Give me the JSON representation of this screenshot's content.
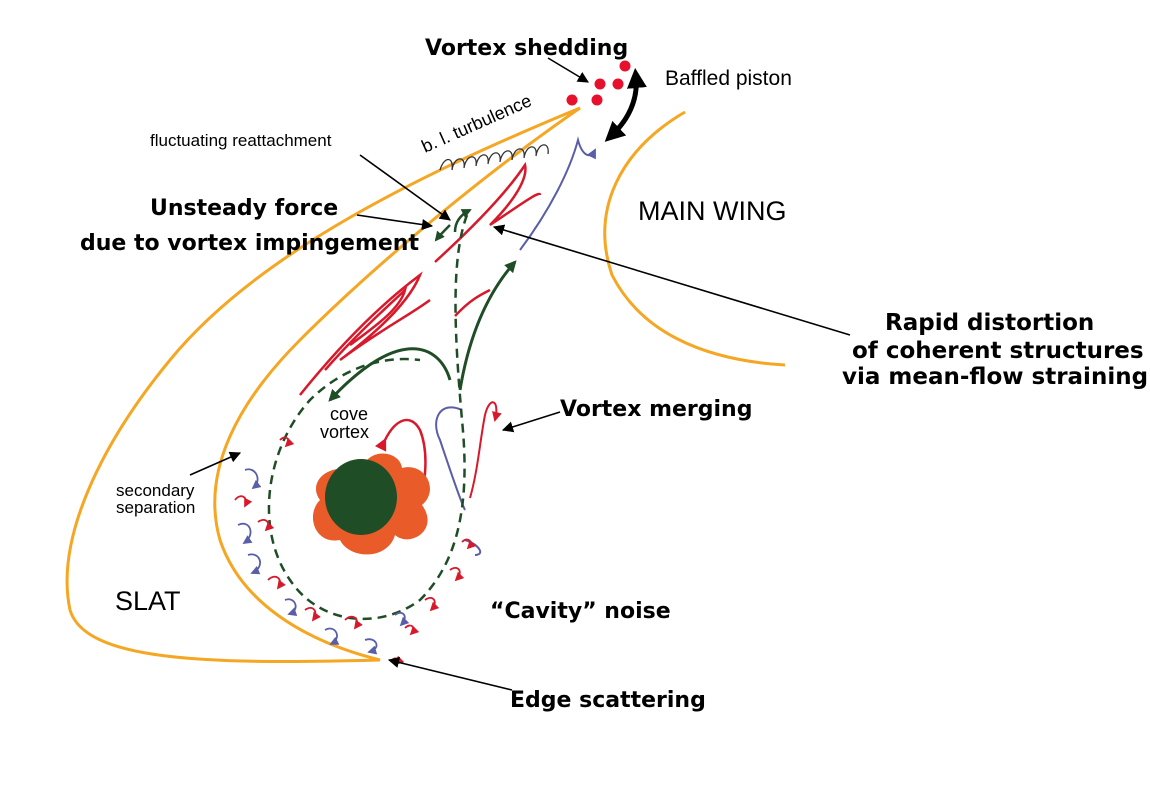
{
  "labels": {
    "vortex_shedding": "Vortex shedding",
    "baffled_piston": "Baffled piston",
    "bl_turbulence": "b. l. turbulence",
    "fluctuating_reattachment": "fluctuating reattachment",
    "unsteady_force_line1": "Unsteady force",
    "unsteady_force_line2": "due to vortex impingement",
    "main_wing": "MAIN WING",
    "rapid_distortion_line1": "Rapid distortion",
    "rapid_distortion_line2": "of coherent structures",
    "rapid_distortion_line3": "via mean-flow straining",
    "vortex_merging": "Vortex merging",
    "cove_vortex_line1": "cove",
    "cove_vortex_line2": "vortex",
    "secondary_separation_line1": "secondary",
    "secondary_separation_line2": "separation",
    "slat": "SLAT",
    "cavity_noise": "“Cavity” noise",
    "edge_scattering": "Edge scattering"
  },
  "colors": {
    "wing_outline": "#f5a623",
    "red_structures": "#d7192b",
    "blue_structures": "#5a5ea8",
    "green_flow": "#1f4d26",
    "vortex_core": "#1f4d26",
    "vortex_halo": "#ea5b2a",
    "shed_dots": "#e8112d",
    "pointer": "#000000"
  }
}
